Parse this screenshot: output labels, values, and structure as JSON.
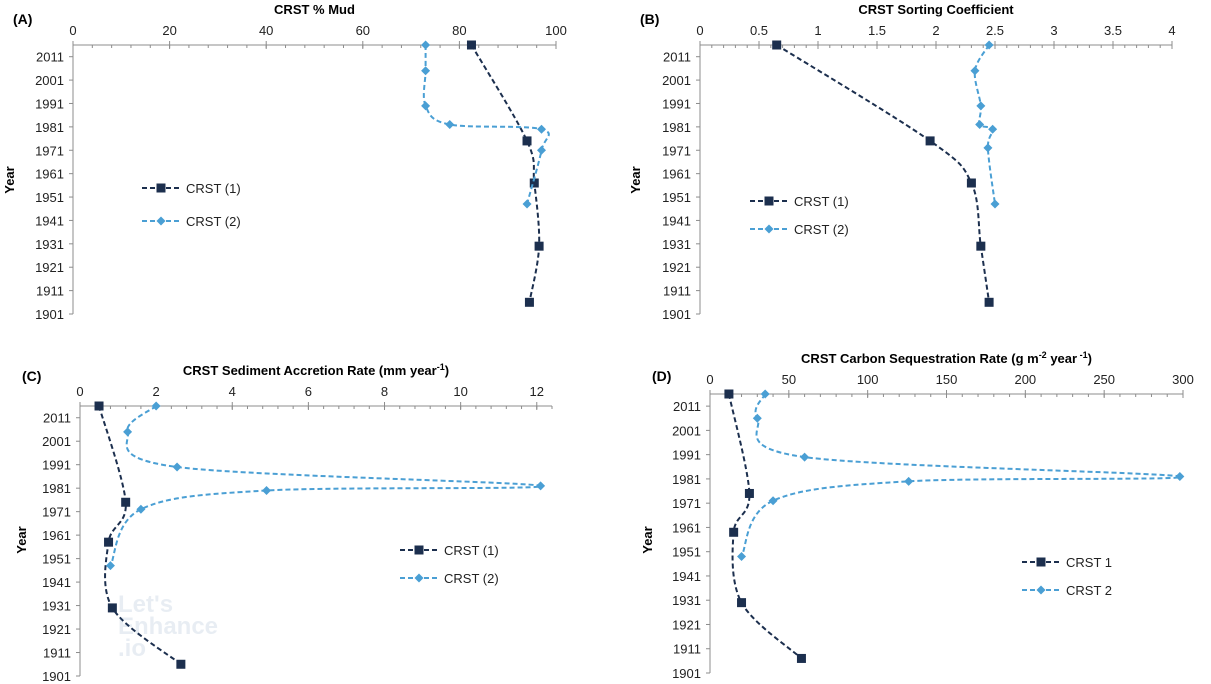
{
  "panels": [
    {
      "letter": "(A)",
      "chart_data": {
        "type": "line",
        "title": "CRST % Mud",
        "title_sup": "",
        "title_after": "",
        "xlabel": "",
        "ylabel": "Year",
        "xlim": [
          0,
          100
        ],
        "xticks": [
          0,
          20,
          40,
          60,
          80,
          100
        ],
        "xtick_labels": [
          "0",
          "20",
          "40",
          "60",
          "80",
          "100"
        ],
        "ylim": [
          1901,
          2016
        ],
        "yticks": [
          1901,
          1911,
          1921,
          1931,
          1941,
          1951,
          1961,
          1971,
          1981,
          1991,
          2001,
          2011
        ],
        "ytick_labels": [
          "1901",
          "1911",
          "1921",
          "1931",
          "1941",
          "1951",
          "1961",
          "1971",
          "1981",
          "1991",
          "2001",
          "2011"
        ],
        "legend_position": "left",
        "series": [
          {
            "name": "CRST (1)",
            "color": "#1c2f4e",
            "marker": "square",
            "points": [
              [
                82.5,
                2016
              ],
              [
                94,
                1975
              ],
              [
                95.5,
                1957
              ],
              [
                96.5,
                1930
              ],
              [
                94.5,
                1906
              ]
            ]
          },
          {
            "name": "CRST (2)",
            "color": "#4a9fd4",
            "marker": "diamond",
            "points": [
              [
                73,
                2016
              ],
              [
                73,
                2005
              ],
              [
                73,
                1990
              ],
              [
                78,
                1982
              ],
              [
                97,
                1980
              ],
              [
                97,
                1971
              ],
              [
                94,
                1948
              ]
            ]
          }
        ]
      }
    },
    {
      "letter": "(B)",
      "chart_data": {
        "type": "line",
        "title": "CRST Sorting Coefficient",
        "title_sup": "",
        "title_after": "",
        "xlabel": "",
        "ylabel": "Year",
        "xlim": [
          0,
          4
        ],
        "xticks": [
          0,
          0.5,
          1,
          1.5,
          2,
          2.5,
          3,
          3.5,
          4
        ],
        "xtick_labels": [
          "0",
          "0.5",
          "1",
          "1.5",
          "2",
          "2.5",
          "3",
          "3.5",
          "4"
        ],
        "ylim": [
          1901,
          2016
        ],
        "yticks": [
          1901,
          1911,
          1921,
          1931,
          1941,
          1951,
          1961,
          1971,
          1981,
          1991,
          2001,
          2011
        ],
        "ytick_labels": [
          "1901",
          "1911",
          "1921",
          "1931",
          "1941",
          "1951",
          "1961",
          "1971",
          "1981",
          "1991",
          "2001",
          "2011"
        ],
        "legend_position": "left",
        "series": [
          {
            "name": "CRST (1)",
            "color": "#1c2f4e",
            "marker": "square",
            "points": [
              [
                0.65,
                2016
              ],
              [
                1.95,
                1975
              ],
              [
                2.3,
                1957
              ],
              [
                2.38,
                1930
              ],
              [
                2.45,
                1906
              ]
            ]
          },
          {
            "name": "CRST (2)",
            "color": "#4a9fd4",
            "marker": "diamond",
            "points": [
              [
                2.45,
                2016
              ],
              [
                2.33,
                2005
              ],
              [
                2.38,
                1990
              ],
              [
                2.37,
                1982
              ],
              [
                2.48,
                1980
              ],
              [
                2.44,
                1972
              ],
              [
                2.5,
                1948
              ]
            ]
          }
        ]
      }
    },
    {
      "letter": "(C)",
      "chart_data": {
        "type": "line",
        "title": "CRST Sediment Accretion Rate (mm year",
        "title_sup": "-1",
        "title_after": ")",
        "xlabel": "",
        "ylabel": "Year",
        "xlim": [
          0,
          12.4
        ],
        "xticks": [
          0,
          2,
          4,
          6,
          8,
          10,
          12
        ],
        "xtick_labels": [
          "0",
          "2",
          "4",
          "6",
          "8",
          "10",
          "12"
        ],
        "ylim": [
          1901,
          2016
        ],
        "yticks": [
          1901,
          1911,
          1921,
          1931,
          1941,
          1951,
          1961,
          1971,
          1981,
          1991,
          2001,
          2011
        ],
        "ytick_labels": [
          "1901",
          "1911",
          "1921",
          "1931",
          "1941",
          "1951",
          "1961",
          "1971",
          "1981",
          "1991",
          "2001",
          "2011"
        ],
        "legend_position": "right",
        "series": [
          {
            "name": "CRST (1)",
            "color": "#1c2f4e",
            "marker": "square",
            "points": [
              [
                0.5,
                2016
              ],
              [
                1.2,
                1975
              ],
              [
                0.75,
                1958
              ],
              [
                0.85,
                1930
              ],
              [
                2.65,
                1906
              ]
            ]
          },
          {
            "name": "CRST (2)",
            "color": "#4a9fd4",
            "marker": "diamond",
            "points": [
              [
                2,
                2016
              ],
              [
                1.25,
                2005
              ],
              [
                2.55,
                1990
              ],
              [
                12.1,
                1982
              ],
              [
                4.9,
                1980
              ],
              [
                1.6,
                1972
              ],
              [
                0.8,
                1948
              ]
            ]
          }
        ]
      }
    },
    {
      "letter": "(D)",
      "chart_data": {
        "type": "line",
        "title": "CRST Carbon Sequestration Rate (g m",
        "title_sup": "-2",
        "title_after": " year",
        "title_sup2": " -1",
        "title_end": ")",
        "xlabel": "",
        "ylabel": "Year",
        "xlim": [
          0,
          300
        ],
        "xticks": [
          0,
          50,
          100,
          150,
          200,
          250,
          300
        ],
        "xtick_labels": [
          "0",
          "50",
          "100",
          "150",
          "200",
          "250",
          "300"
        ],
        "ylim": [
          1901,
          2016
        ],
        "yticks": [
          1901,
          1911,
          1921,
          1931,
          1941,
          1951,
          1961,
          1971,
          1981,
          1991,
          2001,
          2011
        ],
        "ytick_labels": [
          "1901",
          "1911",
          "1921",
          "1931",
          "1941",
          "1951",
          "1961",
          "1971",
          "1981",
          "1991",
          "2001",
          "2011"
        ],
        "legend_position": "right",
        "series": [
          {
            "name": "CRST 1",
            "color": "#1c2f4e",
            "marker": "square",
            "points": [
              [
                12,
                2016
              ],
              [
                25,
                1975
              ],
              [
                15,
                1959
              ],
              [
                20,
                1930
              ],
              [
                58,
                1907
              ]
            ]
          },
          {
            "name": "CRST 2",
            "color": "#4a9fd4",
            "marker": "diamond",
            "points": [
              [
                35,
                2016
              ],
              [
                30,
                2006
              ],
              [
                60,
                1990
              ],
              [
                298,
                1982
              ],
              [
                126,
                1980
              ],
              [
                40,
                1972
              ],
              [
                20,
                1949
              ]
            ]
          }
        ]
      }
    }
  ],
  "watermark": {
    "lines": [
      "Let's",
      "Enhance",
      ".io"
    ]
  }
}
